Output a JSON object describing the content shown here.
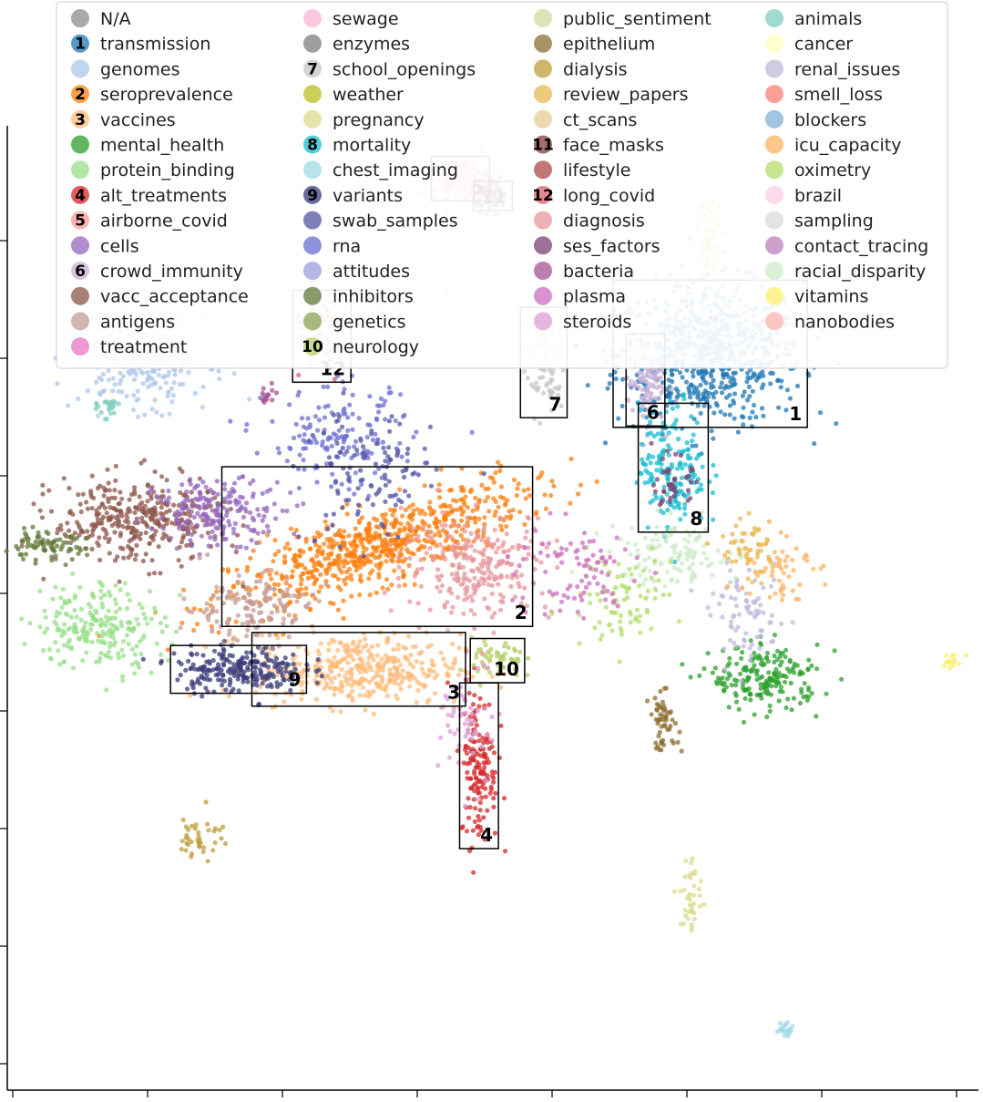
{
  "chart_data": {
    "type": "scatter",
    "title": "",
    "xlabel": "",
    "ylabel": "",
    "grid": false,
    "legend_placement": "top",
    "x_ticks": 8,
    "y_ticks": 8,
    "topics": [
      {
        "name": "N/A",
        "color": "#8c8c8c"
      },
      {
        "name": "transmission",
        "color": "#1f77b4",
        "badge": "1"
      },
      {
        "name": "genomes",
        "color": "#aec7e8"
      },
      {
        "name": "seroprevalence",
        "color": "#ff7f0e",
        "badge": "2"
      },
      {
        "name": "vaccines",
        "color": "#ffbb78",
        "badge": "3"
      },
      {
        "name": "mental_health",
        "color": "#2ca02c"
      },
      {
        "name": "protein_binding",
        "color": "#98df8a"
      },
      {
        "name": "alt_treatments",
        "color": "#d62728",
        "badge": "4"
      },
      {
        "name": "airborne_covid",
        "color": "#ff9896",
        "badge": "5"
      },
      {
        "name": "cells",
        "color": "#9467bd"
      },
      {
        "name": "crowd_immunity",
        "color": "#c5b0d5",
        "badge": "6"
      },
      {
        "name": "vacc_acceptance",
        "color": "#8c564b"
      },
      {
        "name": "antigens",
        "color": "#c49c94"
      },
      {
        "name": "treatment",
        "color": "#e377c2"
      },
      {
        "name": "sewage",
        "color": "#f7b6d2"
      },
      {
        "name": "enzymes",
        "color": "#7f7f7f"
      },
      {
        "name": "school_openings",
        "color": "#c7c7c7",
        "badge": "7"
      },
      {
        "name": "weather",
        "color": "#bcbd22"
      },
      {
        "name": "pregnancy",
        "color": "#dbdb8d"
      },
      {
        "name": "mortality",
        "color": "#17becf",
        "badge": "8"
      },
      {
        "name": "chest_imaging",
        "color": "#9edae5"
      },
      {
        "name": "variants",
        "color": "#393b79",
        "badge": "9"
      },
      {
        "name": "swab_samples",
        "color": "#5254a3"
      },
      {
        "name": "rna",
        "color": "#6b6ecf"
      },
      {
        "name": "attitudes",
        "color": "#9c9ede"
      },
      {
        "name": "inhibitors",
        "color": "#637939"
      },
      {
        "name": "genetics",
        "color": "#8ca252"
      },
      {
        "name": "neurology",
        "color": "#b5cf6b",
        "badge": "10"
      },
      {
        "name": "public_sentiment",
        "color": "#cedb9c"
      },
      {
        "name": "epithelium",
        "color": "#8c6d31"
      },
      {
        "name": "dialysis",
        "color": "#bd9e39"
      },
      {
        "name": "review_papers",
        "color": "#e7ba52"
      },
      {
        "name": "ct_scans",
        "color": "#e7cb94"
      },
      {
        "name": "face_masks",
        "color": "#843c39",
        "badge": "11"
      },
      {
        "name": "lifestyle",
        "color": "#ad494a"
      },
      {
        "name": "long_covid",
        "color": "#d6616b",
        "badge": "12"
      },
      {
        "name": "diagnosis",
        "color": "#e7969c"
      },
      {
        "name": "ses_factors",
        "color": "#7b4173"
      },
      {
        "name": "bacteria",
        "color": "#a55194"
      },
      {
        "name": "plasma",
        "color": "#ce6dbd"
      },
      {
        "name": "steroids",
        "color": "#de9ed6"
      },
      {
        "name": "animals",
        "color": "#80cdc1"
      },
      {
        "name": "cancer",
        "color": "#ffffbf"
      },
      {
        "name": "renal_issues",
        "color": "#bebada"
      },
      {
        "name": "smell_loss",
        "color": "#fb8072"
      },
      {
        "name": "blockers",
        "color": "#80b1d3"
      },
      {
        "name": "icu_capacity",
        "color": "#fdb462"
      },
      {
        "name": "oximetry",
        "color": "#b3de69"
      },
      {
        "name": "brazil",
        "color": "#fccde5"
      },
      {
        "name": "sampling",
        "color": "#d9d9d9"
      },
      {
        "name": "contact_tracing",
        "color": "#bc80bd"
      },
      {
        "name": "racial_disparity",
        "color": "#ccebc5"
      },
      {
        "name": "vitamins",
        "color": "#ffed6f"
      },
      {
        "name": "nanobodies",
        "color": "#fbb4ae"
      }
    ],
    "clusters": [
      {
        "label": "1",
        "topic": "transmission",
        "cx": 7.6,
        "cy": 8.4,
        "sx": 0.5,
        "sy": 0.4,
        "n": 700
      },
      {
        "label": "2",
        "topic": "seroprevalence",
        "cx": 4.0,
        "cy": 6.2,
        "sx": 0.8,
        "sy": 0.22,
        "n": 700,
        "tilt": 0.35
      },
      {
        "label": "3",
        "topic": "vaccines",
        "cx": 3.8,
        "cy": 4.8,
        "sx": 0.55,
        "sy": 0.2,
        "n": 380
      },
      {
        "label": "4",
        "topic": "alt_treatments",
        "cx": 5.1,
        "cy": 3.7,
        "sx": 0.1,
        "sy": 0.45,
        "n": 150
      },
      {
        "label": "5",
        "topic": "airborne_covid",
        "cx": 4.9,
        "cy": 10.4,
        "sx": 0.15,
        "sy": 0.12,
        "n": 180
      },
      {
        "label": "6",
        "topic": "crowd_immunity",
        "cx": 6.9,
        "cy": 8.1,
        "sx": 0.1,
        "sy": 0.25,
        "n": 110
      },
      {
        "label": "7",
        "topic": "school_openings",
        "cx": 5.8,
        "cy": 8.3,
        "sx": 0.12,
        "sy": 0.3,
        "n": 90
      },
      {
        "label": "8",
        "topic": "mortality",
        "cx": 7.2,
        "cy": 7.1,
        "sx": 0.18,
        "sy": 0.35,
        "n": 170
      },
      {
        "label": "9",
        "topic": "variants",
        "cx": 2.5,
        "cy": 4.8,
        "sx": 0.35,
        "sy": 0.13,
        "n": 230
      },
      {
        "label": "10",
        "topic": "neurology",
        "cx": 5.3,
        "cy": 4.9,
        "sx": 0.14,
        "sy": 0.12,
        "n": 60
      },
      {
        "label": "11",
        "topic": "face_masks",
        "cx": 5.25,
        "cy": 10.2,
        "sx": 0.1,
        "sy": 0.08,
        "n": 60
      },
      {
        "label": "12",
        "topic": "long_covid",
        "cx": 3.4,
        "cy": 8.6,
        "sx": 0.15,
        "sy": 0.25,
        "n": 60
      },
      {
        "topic": "genomes",
        "cx": 1.5,
        "cy": 8.4,
        "sx": 0.35,
        "sy": 0.3,
        "n": 320
      },
      {
        "topic": "vacc_acceptance",
        "cx": 1.4,
        "cy": 6.5,
        "sx": 0.45,
        "sy": 0.25,
        "n": 350
      },
      {
        "topic": "cells",
        "cx": 2.3,
        "cy": 6.6,
        "sx": 0.35,
        "sy": 0.18,
        "n": 200
      },
      {
        "topic": "protein_binding",
        "cx": 1.0,
        "cy": 5.3,
        "sx": 0.35,
        "sy": 0.25,
        "n": 220
      },
      {
        "topic": "antigens",
        "cx": 2.6,
        "cy": 5.5,
        "sx": 0.35,
        "sy": 0.2,
        "n": 150
      },
      {
        "topic": "inhibitors",
        "cx": 0.4,
        "cy": 6.2,
        "sx": 0.22,
        "sy": 0.08,
        "n": 80
      },
      {
        "topic": "diagnosis",
        "cx": 5.1,
        "cy": 6.0,
        "sx": 0.4,
        "sy": 0.3,
        "n": 260
      },
      {
        "topic": "mental_health",
        "cx": 8.2,
        "cy": 4.7,
        "sx": 0.3,
        "sy": 0.18,
        "n": 200
      },
      {
        "topic": "rna",
        "cx": 3.6,
        "cy": 7.4,
        "sx": 0.4,
        "sy": 0.3,
        "n": 160
      },
      {
        "topic": "swab_samples",
        "cx": 3.9,
        "cy": 7.0,
        "sx": 0.35,
        "sy": 0.4,
        "n": 110
      },
      {
        "topic": "epithelium",
        "cx": 7.1,
        "cy": 4.2,
        "sx": 0.08,
        "sy": 0.16,
        "n": 55
      },
      {
        "topic": "weather",
        "cx": 7.6,
        "cy": 9.7,
        "sx": 0.07,
        "sy": 0.25,
        "n": 45
      },
      {
        "topic": "pregnancy",
        "cx": 7.4,
        "cy": 2.2,
        "sx": 0.06,
        "sy": 0.25,
        "n": 40
      },
      {
        "topic": "dialysis",
        "cx": 2.1,
        "cy": 2.9,
        "sx": 0.12,
        "sy": 0.15,
        "n": 40
      },
      {
        "topic": "renal_issues",
        "cx": 8.0,
        "cy": 5.4,
        "sx": 0.2,
        "sy": 0.25,
        "n": 80
      },
      {
        "topic": "racial_disparity",
        "cx": 7.2,
        "cy": 6.1,
        "sx": 0.35,
        "sy": 0.2,
        "n": 120
      },
      {
        "topic": "oximetry",
        "cx": 6.6,
        "cy": 5.6,
        "sx": 0.3,
        "sy": 0.25,
        "n": 80
      },
      {
        "topic": "icu_capacity",
        "cx": 8.3,
        "cy": 6.0,
        "sx": 0.2,
        "sy": 0.2,
        "n": 60
      },
      {
        "topic": "chest_imaging",
        "cx": 8.4,
        "cy": 0.7,
        "sx": 0.06,
        "sy": 0.05,
        "n": 20
      },
      {
        "topic": "vitamins",
        "cx": 10.2,
        "cy": 4.9,
        "sx": 0.05,
        "sy": 0.05,
        "n": 14
      },
      {
        "topic": "plasma",
        "cx": 6.1,
        "cy": 5.9,
        "sx": 0.35,
        "sy": 0.3,
        "n": 90
      },
      {
        "topic": "steroids",
        "cx": 5.0,
        "cy": 4.2,
        "sx": 0.15,
        "sy": 0.35,
        "n": 60
      },
      {
        "topic": "ses_factors",
        "cx": 7.2,
        "cy": 6.9,
        "sx": 0.1,
        "sy": 0.15,
        "n": 40
      },
      {
        "topic": "sampling",
        "cx": 4.2,
        "cy": 9.0,
        "sx": 0.4,
        "sy": 0.1,
        "n": 60
      },
      {
        "topic": "animals",
        "cx": 1.1,
        "cy": 7.8,
        "sx": 0.06,
        "sy": 0.06,
        "n": 25
      },
      {
        "topic": "bacteria",
        "cx": 2.8,
        "cy": 7.9,
        "sx": 0.04,
        "sy": 0.06,
        "n": 15
      },
      {
        "topic": "review_papers",
        "cx": 8.0,
        "cy": 6.2,
        "sx": 0.18,
        "sy": 0.18,
        "n": 50
      }
    ]
  }
}
